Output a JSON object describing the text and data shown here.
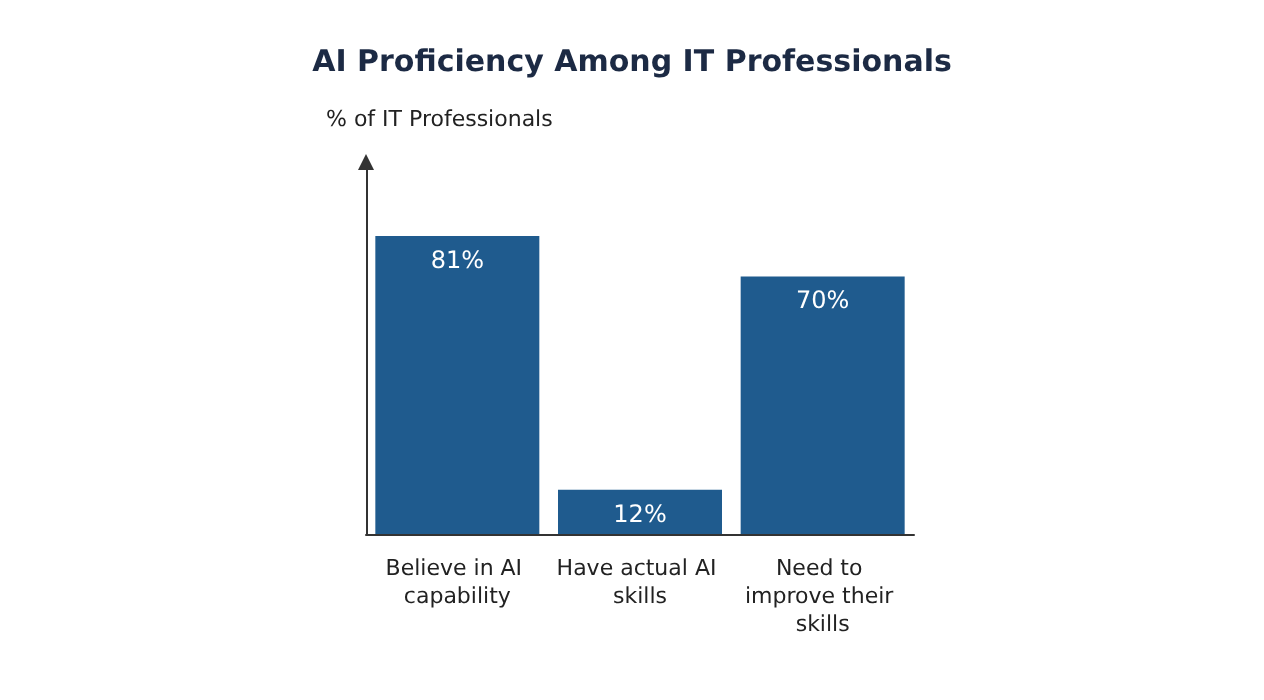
{
  "chart_data": {
    "type": "bar",
    "title": "AI Proficiency Among IT Professionals",
    "ylabel": "% of IT Professionals",
    "categories": [
      "Believe in AI capability",
      "Have actual AI skills",
      "Need to improve their skills"
    ],
    "values": [
      81,
      12,
      70
    ],
    "value_labels": [
      "81%",
      "12%",
      "70%"
    ],
    "color": "#1f5b8e",
    "tick_labels": "x",
    "grid": false
  }
}
